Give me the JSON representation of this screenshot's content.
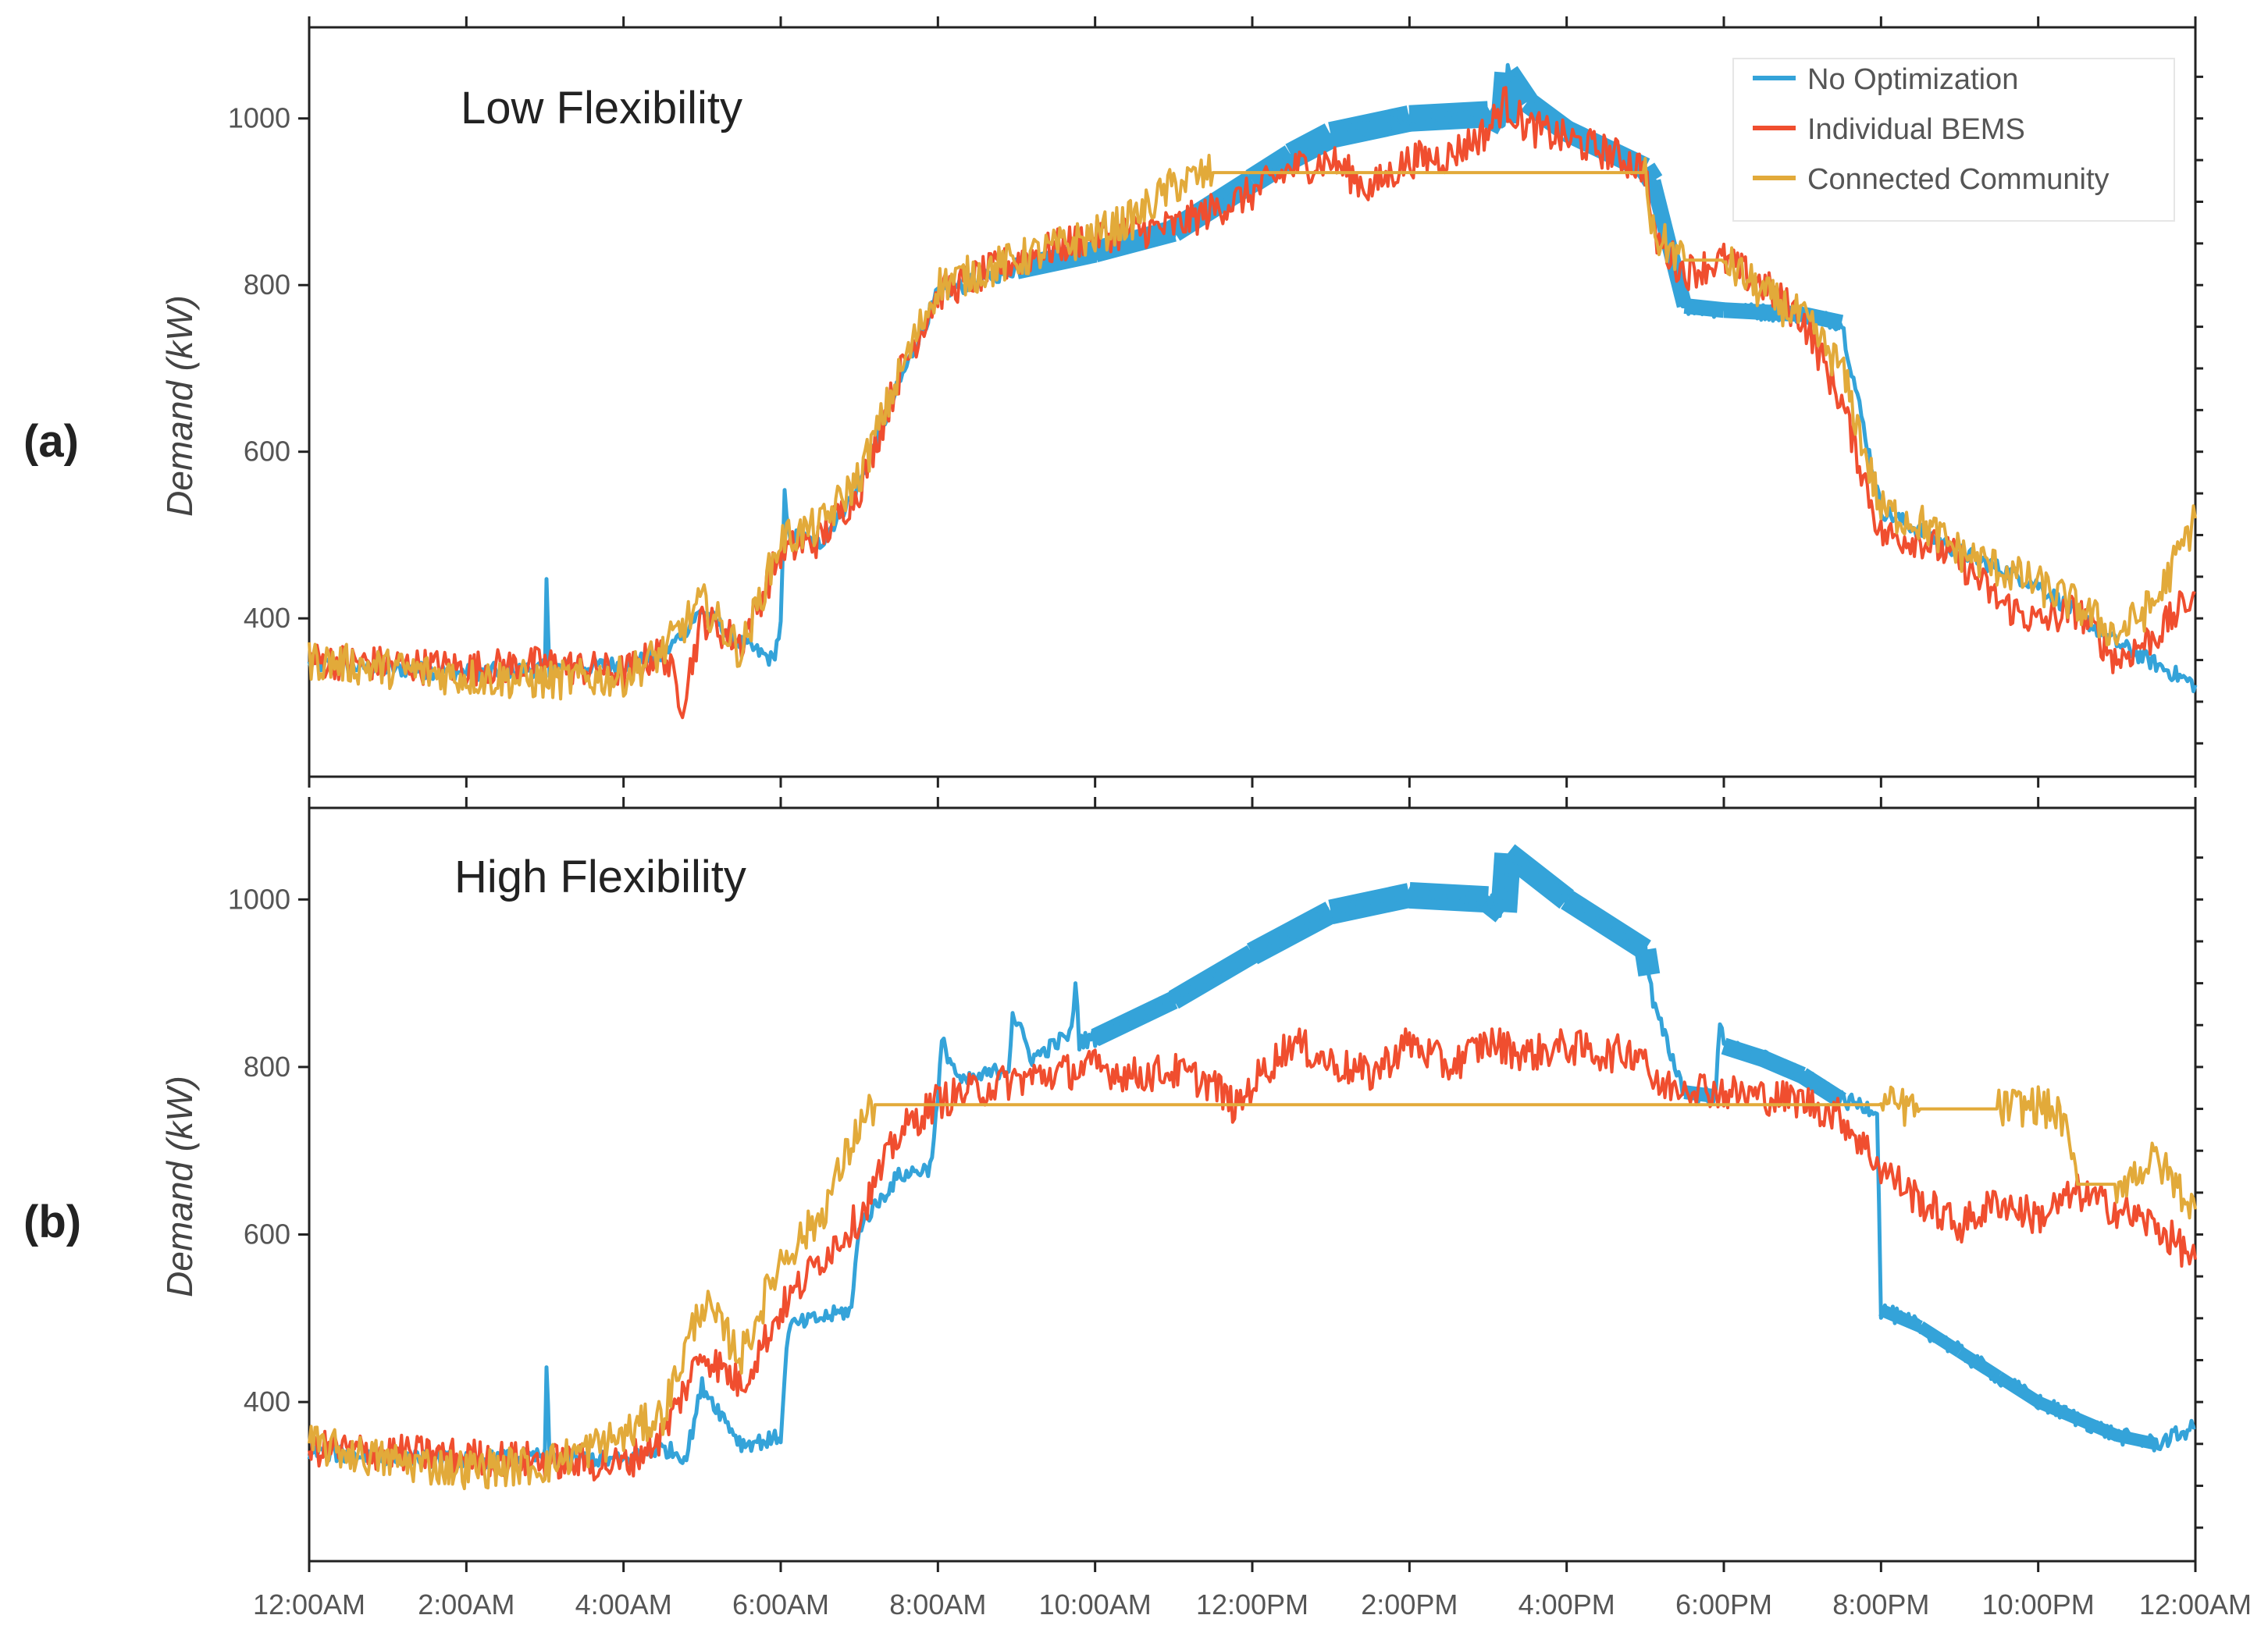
{
  "colors": {
    "no_optimization": "#34a3d9",
    "individual_bems": "#f04e2f",
    "connected_community": "#e2aa3a"
  },
  "legend": {
    "entries": [
      "No Optimization",
      "Individual BEMS",
      "Connected Community"
    ]
  },
  "chart_data": [
    {
      "type": "line",
      "panel_label": "(a)",
      "title": "Low Flexibility",
      "xlabel": "",
      "ylabel": "Demand (kW)",
      "ylim": [
        210,
        1100
      ],
      "yticks": [
        400,
        600,
        800,
        1000
      ],
      "xlim": [
        0,
        24
      ],
      "xticks": [
        0,
        2,
        4,
        6,
        8,
        10,
        12,
        14,
        16,
        18,
        20,
        22,
        24
      ],
      "xtick_labels": [
        "12:00AM",
        "2:00AM",
        "4:00AM",
        "6:00AM",
        "8:00AM",
        "10:00AM",
        "12:00PM",
        "2:00PM",
        "4:00PM",
        "6:00PM",
        "8:00PM",
        "10:00PM",
        "12:00AM"
      ],
      "legend": "top-right",
      "series": [
        {
          "name": "No Optimization",
          "x": [
            0,
            1,
            2,
            3,
            3.02,
            3.06,
            4,
            4.5,
            5,
            5.5,
            5.9,
            6,
            6.05,
            6.1,
            6.5,
            7,
            7.5,
            8,
            9,
            10,
            11,
            12,
            12.5,
            13,
            14,
            15,
            15.2,
            15.25,
            15.5,
            16,
            17,
            17.1,
            17.5,
            18,
            19,
            19.5,
            20,
            20.5,
            21,
            22,
            23,
            24
          ],
          "values": [
            345,
            340,
            335,
            340,
            440,
            340,
            345,
            355,
            410,
            370,
            350,
            390,
            545,
            500,
            490,
            560,
            680,
            790,
            820,
            840,
            865,
            925,
            955,
            980,
            1000,
            1005,
            995,
            1055,
            1020,
            985,
            940,
            925,
            775,
            770,
            765,
            755,
            530,
            505,
            480,
            440,
            370,
            320
          ],
          "band_width": [
            0,
            0,
            0,
            0,
            0,
            0,
            0,
            0,
            0,
            0,
            0,
            0,
            0,
            0,
            0,
            0,
            0,
            0,
            28,
            28,
            30,
            32,
            34,
            34,
            34,
            34,
            34,
            34,
            30,
            28,
            28,
            28,
            20,
            20,
            20,
            20,
            0,
            0,
            0,
            0,
            0,
            0
          ]
        },
        {
          "name": "Individual BEMS",
          "x": [
            0,
            1,
            2,
            3,
            4,
            4.5,
            4.75,
            5,
            5.5,
            6,
            6.5,
            7,
            7.5,
            8,
            9,
            10,
            11,
            12,
            12.5,
            13,
            13.5,
            14,
            14.5,
            15,
            15.2,
            15.5,
            16,
            16.5,
            17,
            17.1,
            17.5,
            18,
            18.5,
            19,
            19.5,
            20,
            20.5,
            21,
            21.5,
            22,
            22.5,
            23,
            23.5,
            24
          ],
          "values": [
            350,
            345,
            340,
            345,
            335,
            360,
            300,
            400,
            370,
            480,
            495,
            555,
            690,
            790,
            830,
            860,
            870,
            910,
            940,
            950,
            915,
            950,
            955,
            985,
            1020,
            990,
            975,
            960,
            940,
            860,
            815,
            830,
            800,
            760,
            660,
            500,
            495,
            470,
            420,
            395,
            410,
            350,
            380,
            430
          ]
        },
        {
          "name": "Connected Community",
          "x": [
            0,
            1,
            2,
            3,
            4,
            4.5,
            5,
            5.5,
            6,
            6.5,
            7,
            7.5,
            8,
            9,
            10,
            10.5,
            11,
            11.5,
            16,
            17,
            17.1,
            17.5,
            18,
            18.5,
            19,
            19.5,
            20,
            20.5,
            21,
            21.5,
            22,
            22.5,
            23,
            23.5,
            24
          ],
          "values": [
            350,
            340,
            330,
            325,
            330,
            360,
            420,
            360,
            495,
            510,
            570,
            690,
            800,
            830,
            860,
            880,
            920,
            935,
            935,
            935,
            860,
            830,
            830,
            790,
            760,
            700,
            530,
            515,
            480,
            460,
            440,
            415,
            380,
            420,
            520
          ]
        }
      ]
    },
    {
      "type": "line",
      "panel_label": "(b)",
      "title": "High Flexibility",
      "xlabel": "",
      "ylabel": "Demand (kW)",
      "ylim": [
        210,
        1100
      ],
      "yticks": [
        400,
        600,
        800,
        1000
      ],
      "xlim": [
        0,
        24
      ],
      "xticks": [
        0,
        2,
        4,
        6,
        8,
        10,
        12,
        14,
        16,
        18,
        20,
        22,
        24
      ],
      "xtick_labels": [
        "12:00AM",
        "2:00AM",
        "4:00AM",
        "6:00AM",
        "8:00AM",
        "10:00AM",
        "12:00PM",
        "2:00PM",
        "4:00PM",
        "6:00PM",
        "8:00PM",
        "10:00PM",
        "12:00AM"
      ],
      "legend": "none",
      "series": [
        {
          "name": "No Optimization",
          "x": [
            0,
            1,
            2,
            3,
            3.02,
            3.06,
            4,
            4.5,
            4.8,
            5,
            5.5,
            5.9,
            6,
            6.1,
            6.5,
            6.9,
            7,
            7.5,
            7.9,
            8,
            8.05,
            8.3,
            8.9,
            8.95,
            9.2,
            9.7,
            9.75,
            9.8,
            10,
            11,
            12,
            13,
            14,
            15,
            15.2,
            15.25,
            16,
            17,
            17.05,
            17.1,
            17.5,
            17.9,
            17.95,
            18,
            18.5,
            19,
            19.5,
            19.95,
            20,
            20.5,
            21,
            21.5,
            22,
            22.5,
            23,
            23.5,
            24
          ],
          "values": [
            340,
            335,
            330,
            335,
            440,
            335,
            330,
            345,
            335,
            420,
            350,
            355,
            360,
            490,
            500,
            510,
            610,
            670,
            680,
            760,
            830,
            780,
            800,
            865,
            810,
            840,
            905,
            830,
            835,
            880,
            935,
            985,
            1005,
            1000,
            985,
            1055,
            1000,
            940,
            910,
            875,
            770,
            765,
            855,
            825,
            810,
            790,
            760,
            750,
            510,
            490,
            460,
            430,
            400,
            380,
            360,
            350,
            370
          ],
          "band_width": [
            0,
            0,
            0,
            0,
            0,
            0,
            0,
            0,
            0,
            0,
            0,
            0,
            0,
            0,
            0,
            0,
            0,
            0,
            0,
            0,
            0,
            0,
            0,
            0,
            0,
            0,
            0,
            0,
            24,
            26,
            30,
            32,
            34,
            34,
            34,
            34,
            30,
            28,
            28,
            0,
            18,
            18,
            0,
            22,
            22,
            22,
            22,
            0,
            16,
            16,
            16,
            16,
            16,
            16,
            16,
            16,
            0
          ]
        },
        {
          "name": "Individual BEMS",
          "x": [
            0,
            1,
            2,
            3,
            4,
            4.5,
            5,
            5.5,
            6,
            6.5,
            7,
            7.5,
            8,
            9,
            10,
            10.5,
            11,
            11.5,
            11.8,
            12,
            12.5,
            13,
            13.5,
            14,
            14.5,
            15,
            15.5,
            16,
            16.5,
            17,
            17.1,
            17.5,
            18,
            18.5,
            19,
            19.5,
            20,
            20.5,
            21,
            21.5,
            22,
            22.5,
            23,
            23.5,
            24
          ],
          "values": [
            345,
            340,
            335,
            330,
            325,
            360,
            460,
            420,
            510,
            570,
            620,
            720,
            760,
            785,
            800,
            790,
            795,
            780,
            750,
            780,
            830,
            805,
            790,
            830,
            800,
            830,
            815,
            825,
            815,
            820,
            775,
            780,
            770,
            765,
            760,
            740,
            680,
            640,
            610,
            640,
            620,
            650,
            630,
            610,
            570
          ]
        },
        {
          "name": "Connected Community",
          "x": [
            0,
            1,
            2,
            3,
            4,
            4.5,
            5,
            5.5,
            6,
            6.5,
            7,
            7.2,
            20,
            20.5,
            21,
            21.5,
            22,
            22.3,
            22.5,
            23,
            23.5,
            24
          ],
          "values": [
            350,
            330,
            320,
            325,
            360,
            385,
            520,
            455,
            570,
            620,
            730,
            755,
            755,
            750,
            750,
            750,
            755,
            740,
            660,
            660,
            690,
            630
          ]
        }
      ]
    }
  ]
}
